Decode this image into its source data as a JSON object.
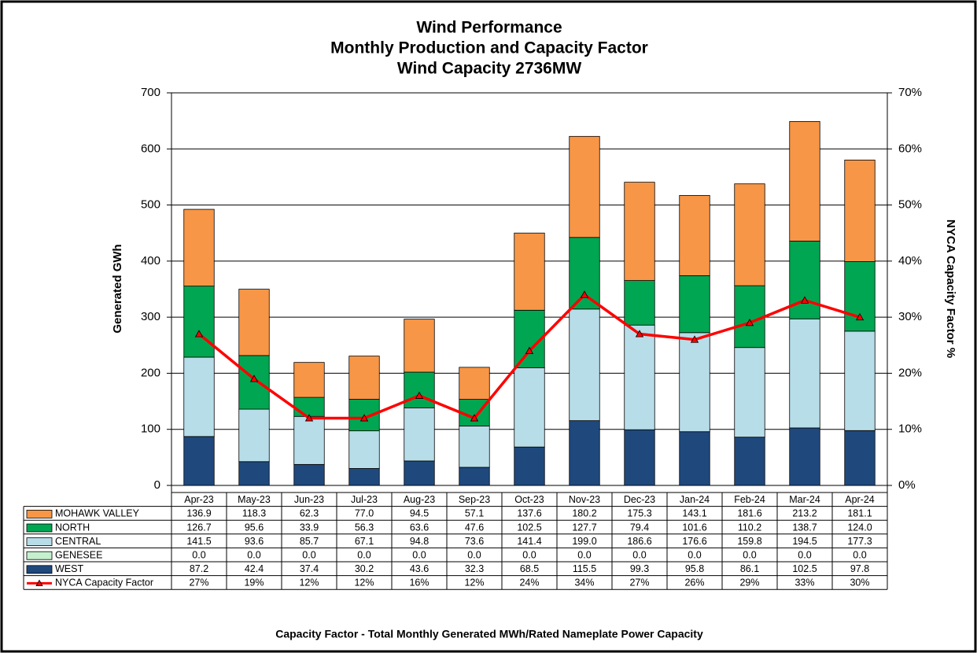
{
  "chart_data": {
    "type": "bar",
    "title": "Wind Performance",
    "subtitles": [
      "Monthly Production and Capacity Factor",
      "Wind Capacity 2736MW"
    ],
    "ylabel": "Generated GWh",
    "y2label": "NYCA  Capacity Factor %",
    "note": "Capacity Factor  - Total Monthly Generated MWh/Rated Nameplate Power Capacity",
    "stacked": true,
    "grid": true,
    "categories": [
      "Apr-23",
      "May-23",
      "Jun-23",
      "Jul-23",
      "Aug-23",
      "Sep-23",
      "Oct-23",
      "Nov-23",
      "Dec-23",
      "Jan-24",
      "Feb-24",
      "Mar-24",
      "Apr-24"
    ],
    "ylim": [
      0,
      700
    ],
    "yticks": [
      0,
      100,
      200,
      300,
      400,
      500,
      600,
      700
    ],
    "y2lim": [
      0,
      70
    ],
    "y2ticks": [
      {
        "value": 0,
        "label": "0%"
      },
      {
        "value": 10,
        "label": "10%"
      },
      {
        "value": 20,
        "label": "20%"
      },
      {
        "value": 30,
        "label": "30%"
      },
      {
        "value": 40,
        "label": "40%"
      },
      {
        "value": 50,
        "label": "50%"
      },
      {
        "value": 60,
        "label": "60%"
      },
      {
        "value": 70,
        "label": "70%"
      }
    ],
    "series": [
      {
        "name": "WEST",
        "color": "#1f497d",
        "values": [
          87.2,
          42.4,
          37.4,
          30.2,
          43.6,
          32.3,
          68.5,
          115.5,
          99.3,
          95.8,
          86.1,
          102.5,
          97.8
        ],
        "value_labels": [
          "87.2",
          "42.4",
          "37.4",
          "30.2",
          "43.6",
          "32.3",
          "68.5",
          "115.5",
          "99.3",
          "95.8",
          "86.1",
          "102.5",
          "97.8"
        ]
      },
      {
        "name": "GENESEE",
        "color": "#c6efce",
        "values": [
          0,
          0,
          0,
          0,
          0,
          0,
          0,
          0,
          0,
          0,
          0,
          0,
          0
        ],
        "value_labels": [
          "0.0",
          "0.0",
          "0.0",
          "0.0",
          "0.0",
          "0.0",
          "0.0",
          "0.0",
          "0.0",
          "0.0",
          "0.0",
          "0.0",
          "0.0"
        ]
      },
      {
        "name": "CENTRAL",
        "color": "#b7dde8",
        "values": [
          141.5,
          93.6,
          85.7,
          67.1,
          94.8,
          73.6,
          141.4,
          199.0,
          186.6,
          176.6,
          159.8,
          194.5,
          177.3
        ],
        "value_labels": [
          "141.5",
          "93.6",
          "85.7",
          "67.1",
          "94.8",
          "73.6",
          "141.4",
          "199.0",
          "186.6",
          "176.6",
          "159.8",
          "194.5",
          "177.3"
        ]
      },
      {
        "name": "NORTH",
        "color": "#00a651",
        "values": [
          126.7,
          95.6,
          33.9,
          56.3,
          63.6,
          47.6,
          102.5,
          127.7,
          79.4,
          101.6,
          110.2,
          138.7,
          124.0
        ],
        "value_labels": [
          "126.7",
          "95.6",
          "33.9",
          "56.3",
          "63.6",
          "47.6",
          "102.5",
          "127.7",
          "79.4",
          "101.6",
          "110.2",
          "138.7",
          "124.0"
        ]
      },
      {
        "name": "MOHAWK VALLEY",
        "color": "#f79646",
        "values": [
          136.9,
          118.3,
          62.3,
          77.0,
          94.5,
          57.1,
          137.6,
          180.2,
          175.3,
          143.1,
          181.6,
          213.2,
          181.1
        ],
        "value_labels": [
          "136.9",
          "118.3",
          "62.3",
          "77.0",
          "94.5",
          "57.1",
          "137.6",
          "180.2",
          "175.3",
          "143.1",
          "181.6",
          "213.2",
          "181.1"
        ]
      },
      {
        "name": "NYCA Capacity Factor",
        "color": "#ff0000",
        "type": "line",
        "axis": "y2",
        "values": [
          27,
          19,
          12,
          12,
          16,
          12,
          24,
          34,
          27,
          26,
          29,
          33,
          30
        ],
        "value_labels": [
          "27%",
          "19%",
          "12%",
          "12%",
          "16%",
          "12%",
          "24%",
          "34%",
          "27%",
          "26%",
          "29%",
          "33%",
          "30%"
        ]
      }
    ]
  }
}
